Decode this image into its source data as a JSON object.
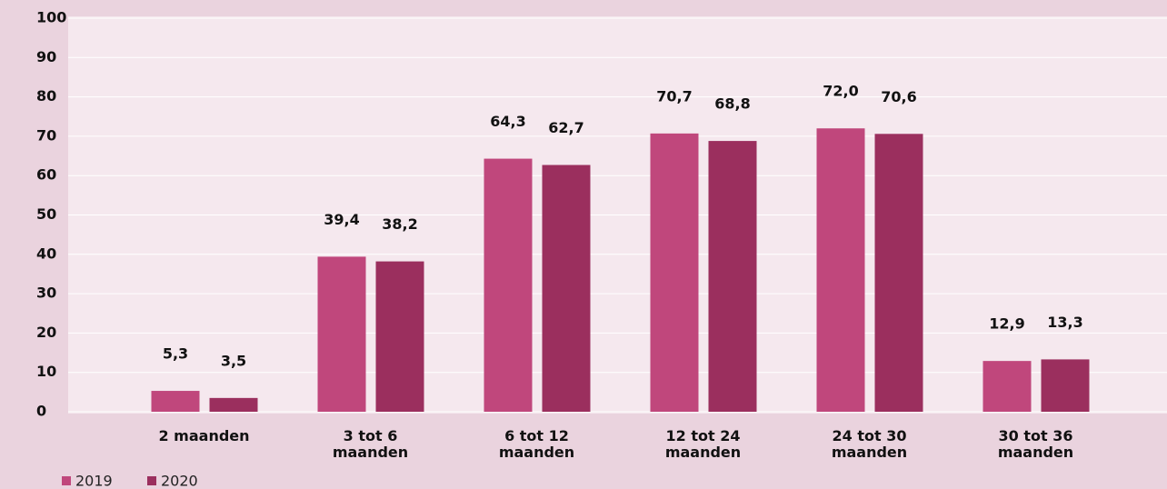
{
  "chart_data": {
    "type": "bar",
    "categories": [
      "2 maanden",
      "3 tot 6 maanden",
      "6 tot 12 maanden",
      "12 tot 24 maanden",
      "24 tot 30 maanden",
      "30 tot 36 maanden"
    ],
    "series": [
      {
        "name": "2019",
        "color": "#c0477c",
        "values": [
          5.3,
          39.4,
          64.3,
          70.7,
          72.0,
          12.9
        ],
        "value_labels": [
          "5,3",
          "39,4",
          "64,3",
          "70,7",
          "72,0",
          "12,9"
        ]
      },
      {
        "name": "2020",
        "color": "#9b2f5e",
        "values": [
          3.5,
          38.2,
          62.7,
          68.8,
          70.6,
          13.3
        ],
        "value_labels": [
          "3,5",
          "38,2",
          "62,7",
          "68,8",
          "70,6",
          "13,3"
        ]
      }
    ],
    "ylim": [
      0,
      100
    ],
    "yticks": [
      0,
      10,
      20,
      30,
      40,
      50,
      60,
      70,
      80,
      90,
      100
    ],
    "grid": true
  }
}
